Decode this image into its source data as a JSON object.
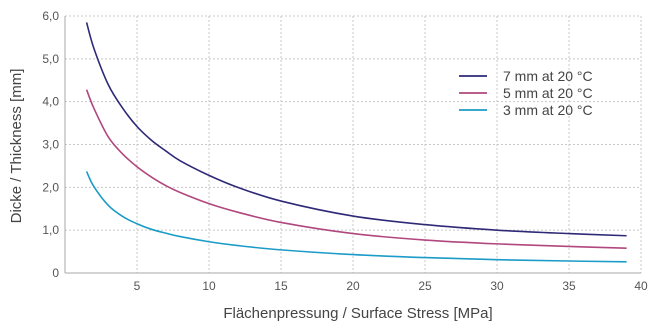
{
  "chart_data": {
    "type": "line",
    "xlabel": "Flächenpressung / Surface Stress   [MPa]",
    "ylabel": "Dicke / Thickness   [mm]",
    "xlim": [
      0,
      40
    ],
    "ylim": [
      0,
      6
    ],
    "x_ticks": [
      "5",
      "10",
      "15",
      "20",
      "25",
      "30",
      "35",
      "40"
    ],
    "y_ticks": [
      "0",
      "1,0",
      "2,0",
      "3,0",
      "4,0",
      "5,0",
      "6,0"
    ],
    "grid": true,
    "legend_position": "top-right",
    "series": [
      {
        "name": "7 mm at 20 °C",
        "color": "#2e2a78",
        "x": [
          1.5,
          2,
          3,
          4,
          5,
          6,
          7,
          8,
          10,
          12,
          15,
          20,
          25,
          30,
          35,
          39
        ],
        "y": [
          5.85,
          5.25,
          4.4,
          3.85,
          3.42,
          3.1,
          2.85,
          2.62,
          2.28,
          2.0,
          1.68,
          1.33,
          1.13,
          1.0,
          0.92,
          0.87
        ]
      },
      {
        "name": "5 mm at 20 °C",
        "color": "#b0477e",
        "x": [
          1.5,
          2,
          3,
          4,
          5,
          6,
          7,
          8,
          10,
          12,
          15,
          20,
          25,
          30,
          35,
          39
        ],
        "y": [
          4.28,
          3.85,
          3.18,
          2.78,
          2.48,
          2.24,
          2.04,
          1.88,
          1.62,
          1.42,
          1.18,
          0.92,
          0.77,
          0.68,
          0.62,
          0.58
        ]
      },
      {
        "name": "3 mm at 20 °C",
        "color": "#1b9bc8",
        "x": [
          1.5,
          2,
          3,
          4,
          5,
          6,
          7,
          8,
          10,
          12,
          15,
          20,
          25,
          30,
          35,
          39
        ],
        "y": [
          2.37,
          2.02,
          1.58,
          1.32,
          1.15,
          1.02,
          0.93,
          0.85,
          0.73,
          0.64,
          0.54,
          0.43,
          0.36,
          0.31,
          0.28,
          0.26
        ]
      }
    ]
  }
}
